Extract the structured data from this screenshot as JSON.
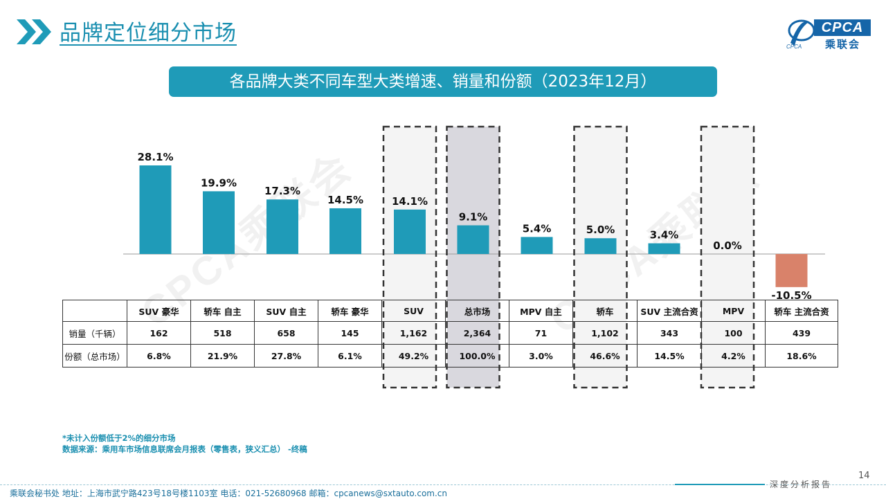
{
  "header": {
    "title": "品牌定位细分市场",
    "logo_text": "CPCA",
    "logo_sub": "乘联会",
    "logo_brand_color": "#1565a8"
  },
  "banner": {
    "text": "各品牌大类不同车型大类增速、销量和份额（2023年12月）"
  },
  "chart_data": {
    "type": "bar",
    "title": "各品牌大类不同车型大类增速、销量和份额（2023年12月）",
    "categories": [
      "SUV 豪华",
      "轿车 自主",
      "SUV 自主",
      "轿车 豪华",
      "SUV",
      "总市场",
      "MPV 自主",
      "轿车",
      "SUV 主流合资",
      "MPV",
      "轿车 主流合资"
    ],
    "values": [
      28.1,
      19.9,
      17.3,
      14.5,
      14.1,
      9.1,
      5.4,
      5.0,
      3.4,
      0.0,
      -10.5
    ],
    "value_labels": [
      "28.1%",
      "19.9%",
      "17.3%",
      "14.5%",
      "14.1%",
      "9.1%",
      "5.4%",
      "5.0%",
      "3.4%",
      "0.0%",
      "-10.5%"
    ],
    "unit": "%",
    "ylim": [
      -10.5,
      28.1
    ],
    "positive_color": "#1f9bb8",
    "negative_color": "#d9826a",
    "highlighted": [
      "SUV",
      "总市场",
      "轿车",
      "MPV"
    ],
    "highlight_fill": [
      "#f4f4f4",
      "#d9d8de",
      "#f4f4f4",
      "#f4f4f4"
    ],
    "grid": false,
    "legend": "none"
  },
  "table": {
    "headers": [
      "",
      "SUV 豪华",
      "轿车 自主",
      "SUV 自主",
      "轿车 豪华",
      "SUV",
      "总市场",
      "MPV 自主",
      "轿车",
      "SUV 主流合资",
      "MPV",
      "轿车 主流合资"
    ],
    "rows": [
      {
        "label": "销量（千辆）",
        "cells": [
          "162",
          "518",
          "658",
          "145",
          "1,162",
          "2,364",
          "71",
          "1,102",
          "343",
          "100",
          "439"
        ]
      },
      {
        "label": "份额（总市场）",
        "cells": [
          "6.8%",
          "21.9%",
          "27.8%",
          "6.1%",
          "49.2%",
          "100.0%",
          "3.0%",
          "46.6%",
          "14.5%",
          "4.2%",
          "18.6%"
        ]
      }
    ]
  },
  "notes": {
    "line1": "*未计入份额低于2%的细分市场",
    "line2": "数据来源：乘用车市场信息联席会月报表（零售表，狭义汇总） -终稿"
  },
  "watermark": {
    "text": "CPCA乘联会"
  },
  "footer": {
    "left": "乘联会秘书处   地址：上海市武宁路423号18号楼1103室  电话：021-52680968   邮箱：cpcanews@sxtauto.com.cn",
    "right": "深度分析报告",
    "page": "14"
  }
}
